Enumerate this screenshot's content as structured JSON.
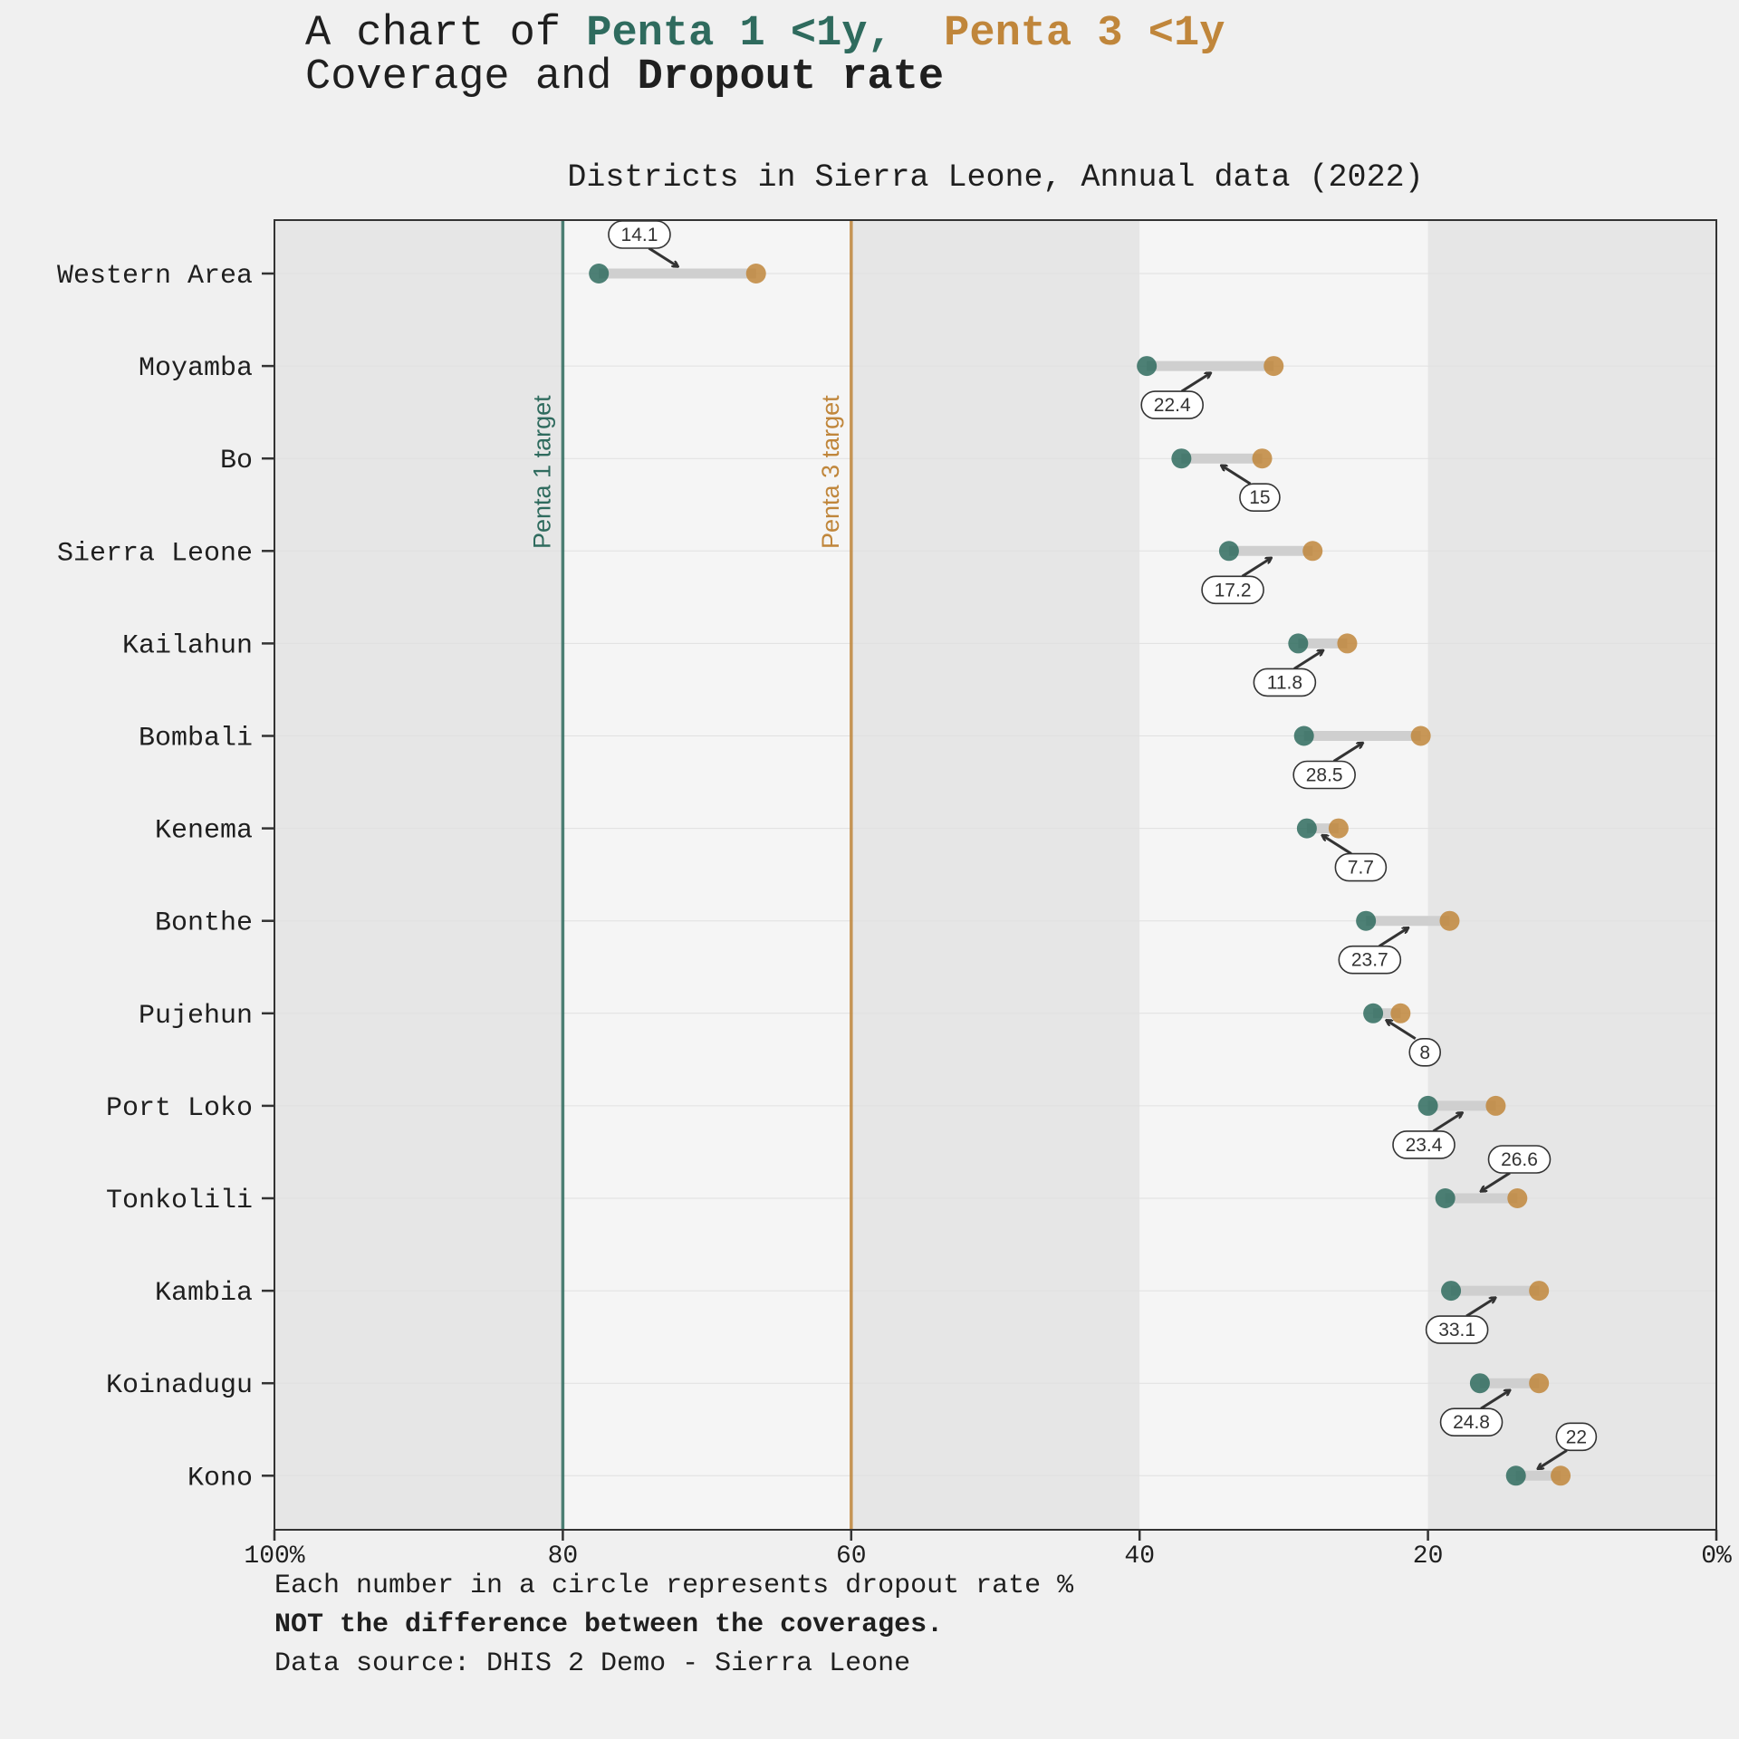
{
  "title": {
    "prefix": "A chart of ",
    "series1": "Penta 1 <1y,",
    "series3": "Penta 3 <1y",
    "line2_prefix": "Coverage and ",
    "line2_bold": "Dropout rate"
  },
  "subtitle": "Districts in Sierra Leone, Annual data (2022)",
  "footnotes": {
    "line1": "Each number in a circle represents dropout rate %",
    "line2": "NOT the difference between the coverages.",
    "line3": "Data source: DHIS 2 Demo - Sierra Leone"
  },
  "colors": {
    "penta1": "#2f6b5e",
    "penta3": "#c0863b",
    "connector": "#cfcfcf",
    "band_dark": "#e6e6e6",
    "band_light": "#f5f5f5",
    "background": "#f0f0f0"
  },
  "chart_data": {
    "type": "dumbbell",
    "xlim": [
      100,
      0
    ],
    "x_reversed": true,
    "x_ticks": [
      {
        "value": 100,
        "label": "100%"
      },
      {
        "value": 80,
        "label": "80"
      },
      {
        "value": 60,
        "label": "60"
      },
      {
        "value": 40,
        "label": "40"
      },
      {
        "value": 20,
        "label": "20"
      },
      {
        "value": 0,
        "label": "0%"
      }
    ],
    "series": [
      {
        "name": "Penta 1 <1y",
        "key": "penta1"
      },
      {
        "name": "Penta 3 <1y",
        "key": "penta3"
      }
    ],
    "targets": [
      {
        "label": "Penta 1 target",
        "value": 80,
        "color": "#2f6b5e"
      },
      {
        "label": "Penta 3 target",
        "value": 60,
        "color": "#c0863b"
      }
    ],
    "bands": [
      {
        "from": 100,
        "to": 80,
        "shade": "dark"
      },
      {
        "from": 80,
        "to": 60,
        "shade": "light"
      },
      {
        "from": 60,
        "to": 40,
        "shade": "dark"
      },
      {
        "from": 40,
        "to": 20,
        "shade": "light"
      },
      {
        "from": 20,
        "to": 0,
        "shade": "dark"
      }
    ],
    "categories": [
      "Western Area",
      "Moyamba",
      "Bo",
      "Sierra Leone",
      "Kailahun",
      "Bombali",
      "Kenema",
      "Bonthe",
      "Pujehun",
      "Port Loko",
      "Tonkolili",
      "Kambia",
      "Koinadugu",
      "Kono"
    ],
    "penta1": [
      77.5,
      39.5,
      37.1,
      33.8,
      29.0,
      28.6,
      28.4,
      24.3,
      23.8,
      20.0,
      18.8,
      18.4,
      16.4,
      13.9
    ],
    "penta3": [
      66.6,
      30.7,
      31.5,
      28.0,
      25.6,
      20.5,
      26.2,
      18.5,
      21.9,
      15.3,
      13.8,
      12.3,
      12.3,
      10.8
    ],
    "dropout_rate": [
      "14.1",
      "22.4",
      "15",
      "17.2",
      "11.8",
      "28.5",
      "7.7",
      "23.7",
      "8",
      "23.4",
      "26.6",
      "33.1",
      "24.8",
      "22"
    ],
    "label_position": [
      "above-left",
      "below-left",
      "below-right",
      "below-left",
      "below-left",
      "below-left",
      "below-right",
      "below-left",
      "below-right",
      "below-left",
      "above-right",
      "below-left",
      "below-left",
      "above-right"
    ]
  }
}
